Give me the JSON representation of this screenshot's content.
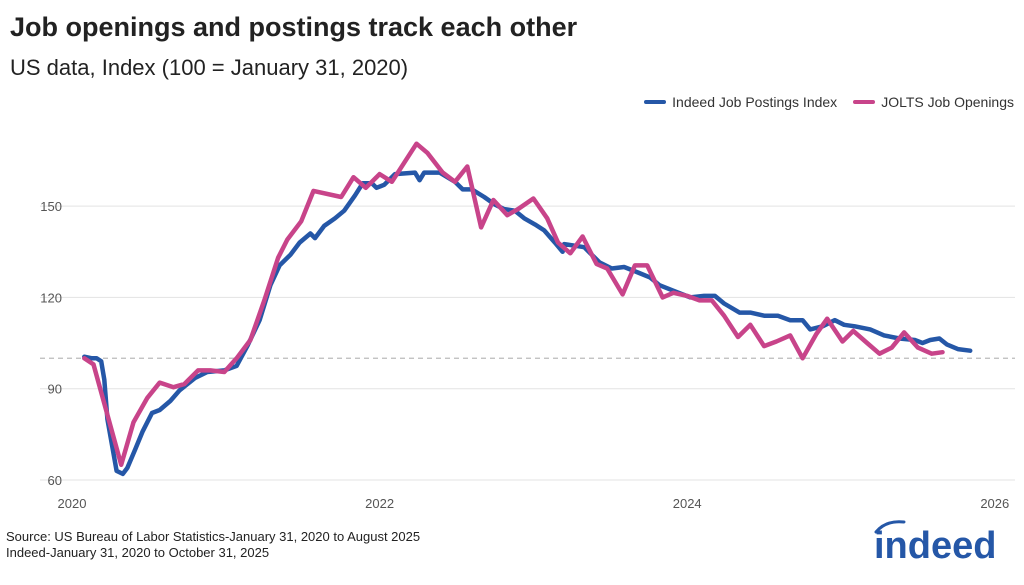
{
  "title": "Job openings and postings track each other",
  "subtitle": "US data, Index (100 = January 31, 2020)",
  "source": [
    "Source: US Bureau of Labor Statistics-January 31, 2020 to August 2025",
    "Indeed-January 31, 2020 to October 31, 2025"
  ],
  "logo_text": "indeed",
  "chart_data": {
    "type": "line",
    "title": "Job openings and postings track each other",
    "xlabel": "",
    "ylabel": "",
    "xlim": [
      2020,
      2026
    ],
    "ylim": [
      60,
      175
    ],
    "x_ticks": [
      2020,
      2022,
      2024,
      2026
    ],
    "y_ticks": [
      60,
      90,
      120,
      150
    ],
    "reference_line": 100,
    "legend_position": "top-right",
    "series": [
      {
        "name": "Indeed Job Postings Index",
        "color": "#2557a7",
        "x": [
          2020.08,
          2020.13,
          2020.16,
          2020.19,
          2020.21,
          2020.23,
          2020.26,
          2020.29,
          2020.33,
          2020.36,
          2020.41,
          2020.46,
          2020.52,
          2020.57,
          2020.64,
          2020.7,
          2020.8,
          2020.88,
          2020.99,
          2021.07,
          2021.14,
          2021.22,
          2021.29,
          2021.35,
          2021.42,
          2021.48,
          2021.55,
          2021.58,
          2021.64,
          2021.71,
          2021.77,
          2021.84,
          2021.89,
          2021.95,
          2021.98,
          2022.03,
          2022.1,
          2022.23,
          2022.26,
          2022.29,
          2022.39,
          2022.49,
          2022.54,
          2022.6,
          2022.68,
          2022.75,
          2022.81,
          2022.88,
          2022.94,
          2023.01,
          2023.07,
          2023.14,
          2023.19,
          2023.2,
          2023.27,
          2023.33,
          2023.43,
          2023.51,
          2023.59,
          2023.69,
          2023.76,
          2023.82,
          2023.92,
          2024.02,
          2024.11,
          2024.18,
          2024.24,
          2024.34,
          2024.41,
          2024.5,
          2024.59,
          2024.67,
          2024.75,
          2024.8,
          2024.88,
          2024.96,
          2025.02,
          2025.09,
          2025.19,
          2025.28,
          2025.38,
          2025.48,
          2025.53,
          2025.58,
          2025.64,
          2025.69,
          2025.76,
          2025.84
        ],
        "y": [
          100.5,
          100,
          100,
          99,
          93,
          80,
          71.5,
          63,
          62,
          64,
          70,
          76,
          82,
          83,
          86,
          89.5,
          93.5,
          95.5,
          96,
          97.5,
          104,
          112.5,
          124,
          130.5,
          134,
          138,
          141,
          139.5,
          143.5,
          146,
          148.5,
          153.5,
          157.5,
          157.5,
          156,
          157,
          160.5,
          161,
          158.5,
          161,
          161,
          158,
          155.5,
          155.5,
          153,
          150.5,
          149,
          148.5,
          146,
          144,
          142,
          138,
          135,
          137.5,
          137,
          136.5,
          131.5,
          129.5,
          130,
          128,
          126.5,
          124,
          122,
          120,
          120.5,
          120.5,
          118,
          115,
          115,
          114,
          114,
          112.5,
          112.5,
          109.5,
          110.5,
          112.5,
          111,
          110.5,
          109.5,
          107.5,
          106.5,
          106,
          105,
          106,
          106.5,
          104.5,
          103,
          102.5
        ]
      },
      {
        "name": "JOLTS Job Openings",
        "color": "#c8448a",
        "x": [
          2020.08,
          2020.14,
          2020.32,
          2020.4,
          2020.49,
          2020.57,
          2020.66,
          2020.73,
          2020.82,
          2020.9,
          2020.99,
          2021.07,
          2021.16,
          2021.25,
          2021.34,
          2021.4,
          2021.49,
          2021.57,
          2021.75,
          2021.83,
          2021.91,
          2022.0,
          2022.08,
          2022.24,
          2022.31,
          2022.41,
          2022.49,
          2022.57,
          2022.66,
          2022.74,
          2022.83,
          2022.9,
          2023.0,
          2023.09,
          2023.16,
          2023.24,
          2023.32,
          2023.41,
          2023.48,
          2023.58,
          2023.66,
          2023.74,
          2023.84,
          2023.91,
          2024.0,
          2024.08,
          2024.16,
          2024.24,
          2024.33,
          2024.41,
          2024.5,
          2024.58,
          2024.67,
          2024.75,
          2024.84,
          2024.91,
          2025.01,
          2025.08,
          2025.17,
          2025.25,
          2025.33,
          2025.41,
          2025.5,
          2025.59,
          2025.66
        ],
        "y": [
          100,
          98,
          65,
          79,
          87,
          92,
          90.5,
          91.5,
          96,
          96,
          95.5,
          100,
          106,
          119,
          133,
          139,
          145,
          155,
          153,
          159.5,
          156,
          160.5,
          158,
          170.5,
          167.5,
          161,
          158,
          163,
          143,
          152,
          147,
          149,
          152.5,
          146,
          138,
          134.5,
          140,
          131,
          129.5,
          121,
          130.5,
          130.5,
          120,
          121.5,
          120.5,
          119,
          119,
          114,
          107,
          111,
          104,
          105.5,
          107.5,
          100,
          108,
          113,
          105.5,
          109,
          105,
          101.5,
          103.5,
          108.5,
          103.5,
          101.5,
          102
        ]
      }
    ]
  }
}
